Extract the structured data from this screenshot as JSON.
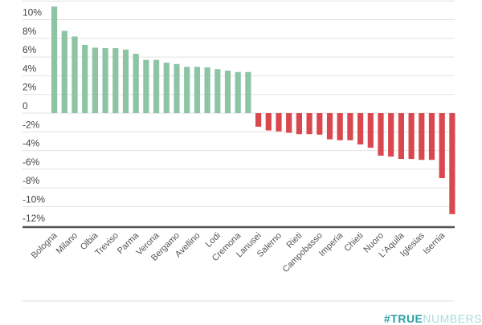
{
  "chart_data": {
    "type": "bar",
    "title": "",
    "xlabel": "",
    "ylabel": "",
    "ylim": [
      -12,
      12
    ],
    "y_ticks": [
      10,
      8,
      6,
      4,
      2,
      0,
      -2,
      -4,
      -6,
      -8,
      -10,
      -12
    ],
    "y_tick_labels": [
      "10%",
      "8%",
      "6%",
      "4%",
      "2%",
      "0",
      "-2%",
      "-4%",
      "-6%",
      "-8%",
      "-10%",
      "-12%"
    ],
    "grid": true,
    "categories": [
      "Bologna",
      "",
      "Milano",
      "",
      "Olbia",
      "",
      "Treviso",
      "",
      "Parma",
      "",
      "Verona",
      "",
      "Bergamo",
      "",
      "Avellino",
      "",
      "Lodi",
      "",
      "Cremona",
      "",
      "Lanusei",
      "",
      "Salerno",
      "",
      "Rieti",
      "",
      "Campobasso",
      "",
      "Imperia",
      "",
      "Chieti",
      "",
      "Nuoro",
      "",
      "L'Aquila",
      "",
      "Iglesias",
      "",
      "Isernia",
      ""
    ],
    "values": [
      11.4,
      8.8,
      8.2,
      7.3,
      7.0,
      6.95,
      6.95,
      6.8,
      6.35,
      5.7,
      5.7,
      5.4,
      5.25,
      4.95,
      4.95,
      4.9,
      4.7,
      4.55,
      4.4,
      4.4,
      -1.45,
      -1.85,
      -1.95,
      -2.1,
      -2.25,
      -2.25,
      -2.3,
      -2.8,
      -2.9,
      -2.9,
      -3.35,
      -3.7,
      -4.55,
      -4.65,
      -4.9,
      -4.9,
      -5.0,
      -5.0,
      -6.95,
      -10.8
    ],
    "colors": {
      "positive": "#8cc4a4",
      "negative": "#d9484f",
      "grid": "#e2e2e2",
      "axis": "#555555"
    }
  },
  "logo": {
    "part1": "#TRUE",
    "part2": "NUMBERS"
  }
}
